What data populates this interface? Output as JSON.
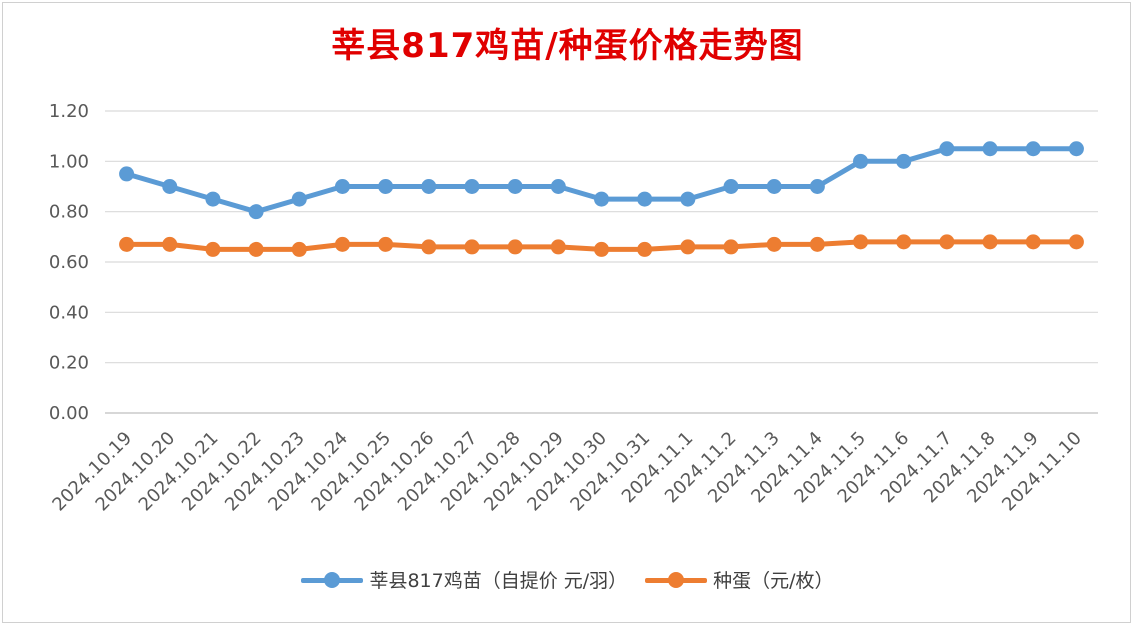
{
  "chart_data": {
    "type": "line",
    "title": "莘县817鸡苗/种蛋价格走势图",
    "xlabel": "",
    "ylabel": "",
    "ylim": [
      0,
      1.2
    ],
    "yticks": [
      "0.00",
      "0.20",
      "0.40",
      "0.60",
      "0.80",
      "1.00",
      "1.20"
    ],
    "grid": true,
    "legend_position": "bottom",
    "categories": [
      "2024.10.19",
      "2024.10.20",
      "2024.10.21",
      "2024.10.22",
      "2024.10.23",
      "2024.10.24",
      "2024.10.25",
      "2024.10.26",
      "2024.10.27",
      "2024.10.28",
      "2024.10.29",
      "2024.10.30",
      "2024.10.31",
      "2024.11.1",
      "2024.11.2",
      "2024.11.3",
      "2024.11.4",
      "2024.11.5",
      "2024.11.6",
      "2024.11.7",
      "2024.11.8",
      "2024.11.9",
      "2024.11.10"
    ],
    "series": [
      {
        "name": "莘县817鸡苗（自提价 元/羽）",
        "color": "#5b9bd5",
        "values": [
          0.95,
          0.9,
          0.85,
          0.8,
          0.85,
          0.9,
          0.9,
          0.9,
          0.9,
          0.9,
          0.9,
          0.85,
          0.85,
          0.85,
          0.9,
          0.9,
          0.9,
          1.0,
          1.0,
          1.05,
          1.05,
          1.05,
          1.05
        ]
      },
      {
        "name": "种蛋（元/枚）",
        "color": "#ed7d31",
        "values": [
          0.67,
          0.67,
          0.65,
          0.65,
          0.65,
          0.67,
          0.67,
          0.66,
          0.66,
          0.66,
          0.66,
          0.65,
          0.65,
          0.66,
          0.66,
          0.67,
          0.67,
          0.68,
          0.68,
          0.68,
          0.68,
          0.68,
          0.68
        ]
      }
    ]
  }
}
